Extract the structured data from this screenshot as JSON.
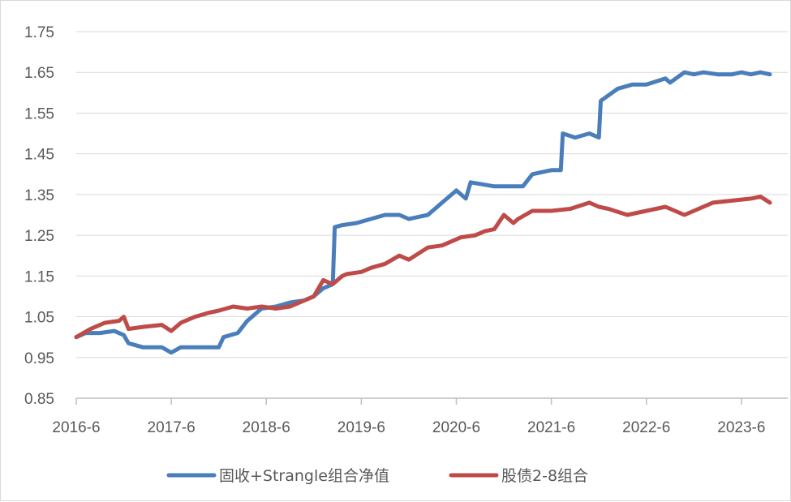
{
  "chart_data": {
    "type": "line",
    "x_tick_labels": [
      "2016-6",
      "2017-6",
      "2018-6",
      "2019-6",
      "2020-6",
      "2021-6",
      "2022-6",
      "2023-6"
    ],
    "y_tick_labels": [
      "0.85",
      "0.95",
      "1.05",
      "1.15",
      "1.25",
      "1.35",
      "1.45",
      "1.55",
      "1.65",
      "1.75"
    ],
    "ylim": [
      0.85,
      1.75
    ],
    "xlim": [
      2016.5,
      2023.8
    ],
    "grid": "horizontal",
    "legend_position": "bottom",
    "series": [
      {
        "name": "固收+Strangle组合净值",
        "color": "#4a7ebb",
        "x": [
          2016.5,
          2016.6,
          2016.75,
          2016.9,
          2017.0,
          2017.05,
          2017.2,
          2017.4,
          2017.5,
          2017.6,
          2017.75,
          2017.9,
          2018.0,
          2018.05,
          2018.2,
          2018.3,
          2018.45,
          2018.6,
          2018.75,
          2018.9,
          2019.0,
          2019.1,
          2019.2,
          2019.22,
          2019.3,
          2019.45,
          2019.6,
          2019.75,
          2019.9,
          2020.0,
          2020.2,
          2020.35,
          2020.5,
          2020.6,
          2020.65,
          2020.9,
          2021.0,
          2021.2,
          2021.3,
          2021.5,
          2021.6,
          2021.62,
          2021.75,
          2021.9,
          2022.0,
          2022.02,
          2022.2,
          2022.35,
          2022.5,
          2022.7,
          2022.75,
          2022.9,
          2023.0,
          2023.1,
          2023.25,
          2023.4,
          2023.5,
          2023.6,
          2023.7,
          2023.8
        ],
        "values": [
          1.0,
          1.01,
          1.01,
          1.015,
          1.005,
          0.985,
          0.975,
          0.975,
          0.962,
          0.975,
          0.975,
          0.975,
          0.975,
          1.0,
          1.01,
          1.04,
          1.07,
          1.075,
          1.085,
          1.09,
          1.1,
          1.12,
          1.13,
          1.27,
          1.275,
          1.28,
          1.29,
          1.3,
          1.3,
          1.29,
          1.3,
          1.33,
          1.36,
          1.34,
          1.38,
          1.37,
          1.37,
          1.37,
          1.4,
          1.41,
          1.41,
          1.5,
          1.49,
          1.5,
          1.49,
          1.58,
          1.61,
          1.62,
          1.62,
          1.635,
          1.625,
          1.65,
          1.645,
          1.65,
          1.645,
          1.645,
          1.65,
          1.645,
          1.65,
          1.645
        ]
      },
      {
        "name": "股债2-8组合",
        "color": "#be4b48",
        "x": [
          2016.5,
          2016.65,
          2016.8,
          2016.95,
          2017.0,
          2017.05,
          2017.2,
          2017.4,
          2017.5,
          2017.6,
          2017.75,
          2017.9,
          2018.0,
          2018.15,
          2018.3,
          2018.45,
          2018.6,
          2018.75,
          2018.9,
          2019.0,
          2019.1,
          2019.2,
          2019.3,
          2019.35,
          2019.5,
          2019.6,
          2019.75,
          2019.9,
          2020.0,
          2020.2,
          2020.35,
          2020.5,
          2020.55,
          2020.7,
          2020.8,
          2020.9,
          2021.0,
          2021.1,
          2021.15,
          2021.3,
          2021.5,
          2021.7,
          2021.9,
          2022.0,
          2022.1,
          2022.3,
          2022.5,
          2022.7,
          2022.9,
          2023.0,
          2023.2,
          2023.4,
          2023.6,
          2023.7,
          2023.8
        ],
        "values": [
          1.0,
          1.02,
          1.035,
          1.04,
          1.05,
          1.02,
          1.025,
          1.03,
          1.015,
          1.035,
          1.05,
          1.06,
          1.065,
          1.075,
          1.07,
          1.075,
          1.07,
          1.075,
          1.09,
          1.1,
          1.14,
          1.13,
          1.15,
          1.155,
          1.16,
          1.17,
          1.18,
          1.2,
          1.19,
          1.22,
          1.225,
          1.24,
          1.245,
          1.25,
          1.26,
          1.265,
          1.3,
          1.28,
          1.29,
          1.31,
          1.31,
          1.315,
          1.33,
          1.32,
          1.315,
          1.3,
          1.31,
          1.32,
          1.3,
          1.31,
          1.33,
          1.335,
          1.34,
          1.345,
          1.33
        ]
      }
    ]
  }
}
